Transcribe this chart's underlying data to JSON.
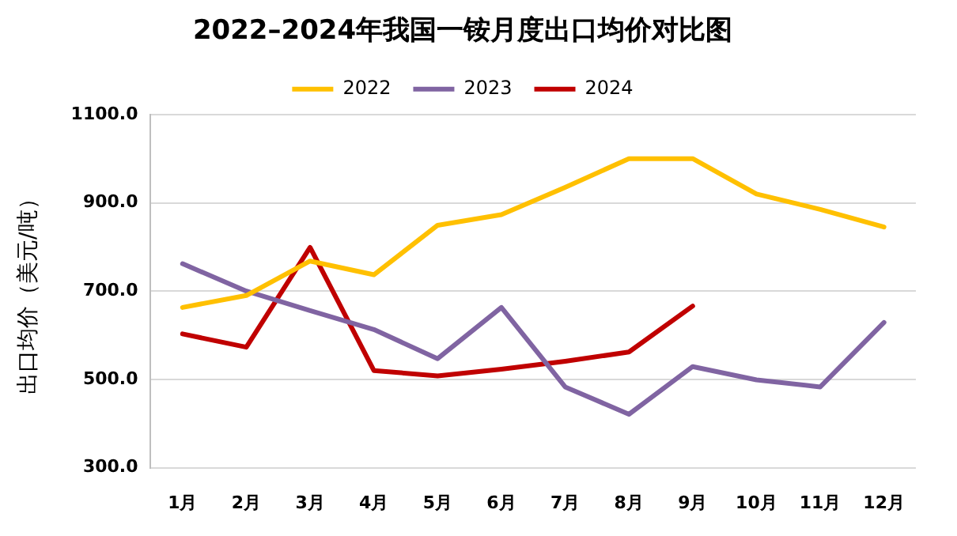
{
  "chart_data": {
    "type": "line",
    "title": "2022–2024年我国一铵月度出口均价对比图",
    "ylabel": "出口均价（美元/吨）",
    "categories": [
      "1月",
      "2月",
      "3月",
      "4月",
      "5月",
      "6月",
      "7月",
      "8月",
      "9月",
      "10月",
      "11月",
      "12月"
    ],
    "series": [
      {
        "name": "2022",
        "color": "#ffc000",
        "values": [
          663,
          690,
          768,
          737,
          849,
          873,
          935,
          1000,
          1000,
          920,
          885,
          845
        ]
      },
      {
        "name": "2023",
        "color": "#8064a2",
        "values": [
          762,
          700,
          656,
          613,
          547,
          663,
          483,
          421,
          529,
          499,
          483,
          629
        ]
      },
      {
        "name": "2024",
        "color": "#c00000",
        "values": [
          603,
          573,
          799,
          520,
          508,
          523,
          541,
          562,
          666,
          null,
          null,
          null
        ]
      }
    ],
    "ylim": [
      300,
      1100
    ],
    "yticks": [
      {
        "value": 300,
        "label": "300.0"
      },
      {
        "value": 500,
        "label": "500.0"
      },
      {
        "value": 700,
        "label": "700.0"
      },
      {
        "value": 900,
        "label": "900.0"
      },
      {
        "value": 1100,
        "label": "1100.0"
      }
    ],
    "grid": "y",
    "legend": "top",
    "marker": "none",
    "line_style": "solid"
  }
}
